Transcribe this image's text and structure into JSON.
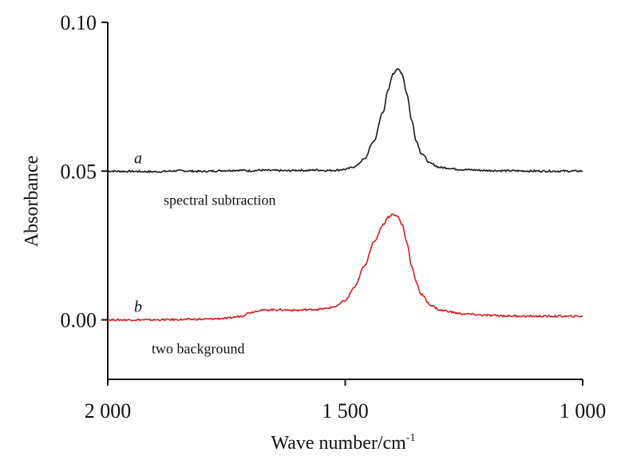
{
  "chart_data": {
    "type": "line",
    "title": "",
    "xlabel": "Wave number/cm",
    "xlabel_superscript": "-1",
    "ylabel": "Absorbance",
    "xlim": [
      2000,
      1000
    ],
    "ylim": [
      -0.02,
      0.1
    ],
    "x_ticks": [
      2000,
      1500,
      1000
    ],
    "x_tick_labels": [
      "2 000",
      "1 500",
      "1 000"
    ],
    "y_ticks": [
      0.0,
      0.05,
      0.1
    ],
    "y_tick_labels": [
      "0.00",
      "0.05",
      "0.10"
    ],
    "grid": false,
    "series": [
      {
        "name": "a",
        "annotation": "spectral subtraction",
        "color": "#1a1a1a",
        "x": [
          2000,
          1950,
          1900,
          1850,
          1800,
          1750,
          1720,
          1700,
          1680,
          1650,
          1620,
          1600,
          1580,
          1560,
          1540,
          1520,
          1500,
          1480,
          1460,
          1440,
          1420,
          1410,
          1400,
          1390,
          1380,
          1370,
          1360,
          1350,
          1340,
          1320,
          1300,
          1250,
          1200,
          1150,
          1100,
          1050,
          1000
        ],
        "y": [
          0.05,
          0.0499,
          0.0498,
          0.0501,
          0.0499,
          0.0502,
          0.0503,
          0.0501,
          0.0503,
          0.0502,
          0.0501,
          0.0503,
          0.0502,
          0.0504,
          0.0502,
          0.0503,
          0.0506,
          0.0515,
          0.054,
          0.06,
          0.07,
          0.077,
          0.0825,
          0.0845,
          0.0825,
          0.076,
          0.067,
          0.06,
          0.056,
          0.0525,
          0.0512,
          0.0505,
          0.0502,
          0.0501,
          0.05,
          0.05,
          0.05
        ]
      },
      {
        "name": "b",
        "annotation": "two background",
        "color": "#d42020",
        "x": [
          2000,
          1950,
          1900,
          1850,
          1800,
          1750,
          1720,
          1700,
          1680,
          1650,
          1620,
          1600,
          1580,
          1560,
          1540,
          1520,
          1500,
          1480,
          1460,
          1440,
          1420,
          1410,
          1400,
          1390,
          1380,
          1370,
          1360,
          1350,
          1340,
          1320,
          1300,
          1250,
          1200,
          1150,
          1100,
          1050,
          1000
        ],
        "y": [
          0.0,
          0.0,
          0.0,
          0.0001,
          0.0002,
          0.0005,
          0.0012,
          0.0025,
          0.0032,
          0.0034,
          0.0033,
          0.0032,
          0.0034,
          0.0035,
          0.0038,
          0.0045,
          0.0065,
          0.011,
          0.018,
          0.026,
          0.032,
          0.0345,
          0.0355,
          0.0348,
          0.032,
          0.026,
          0.018,
          0.0125,
          0.0085,
          0.005,
          0.0032,
          0.002,
          0.0015,
          0.0013,
          0.0012,
          0.0012,
          0.0012
        ]
      }
    ]
  }
}
